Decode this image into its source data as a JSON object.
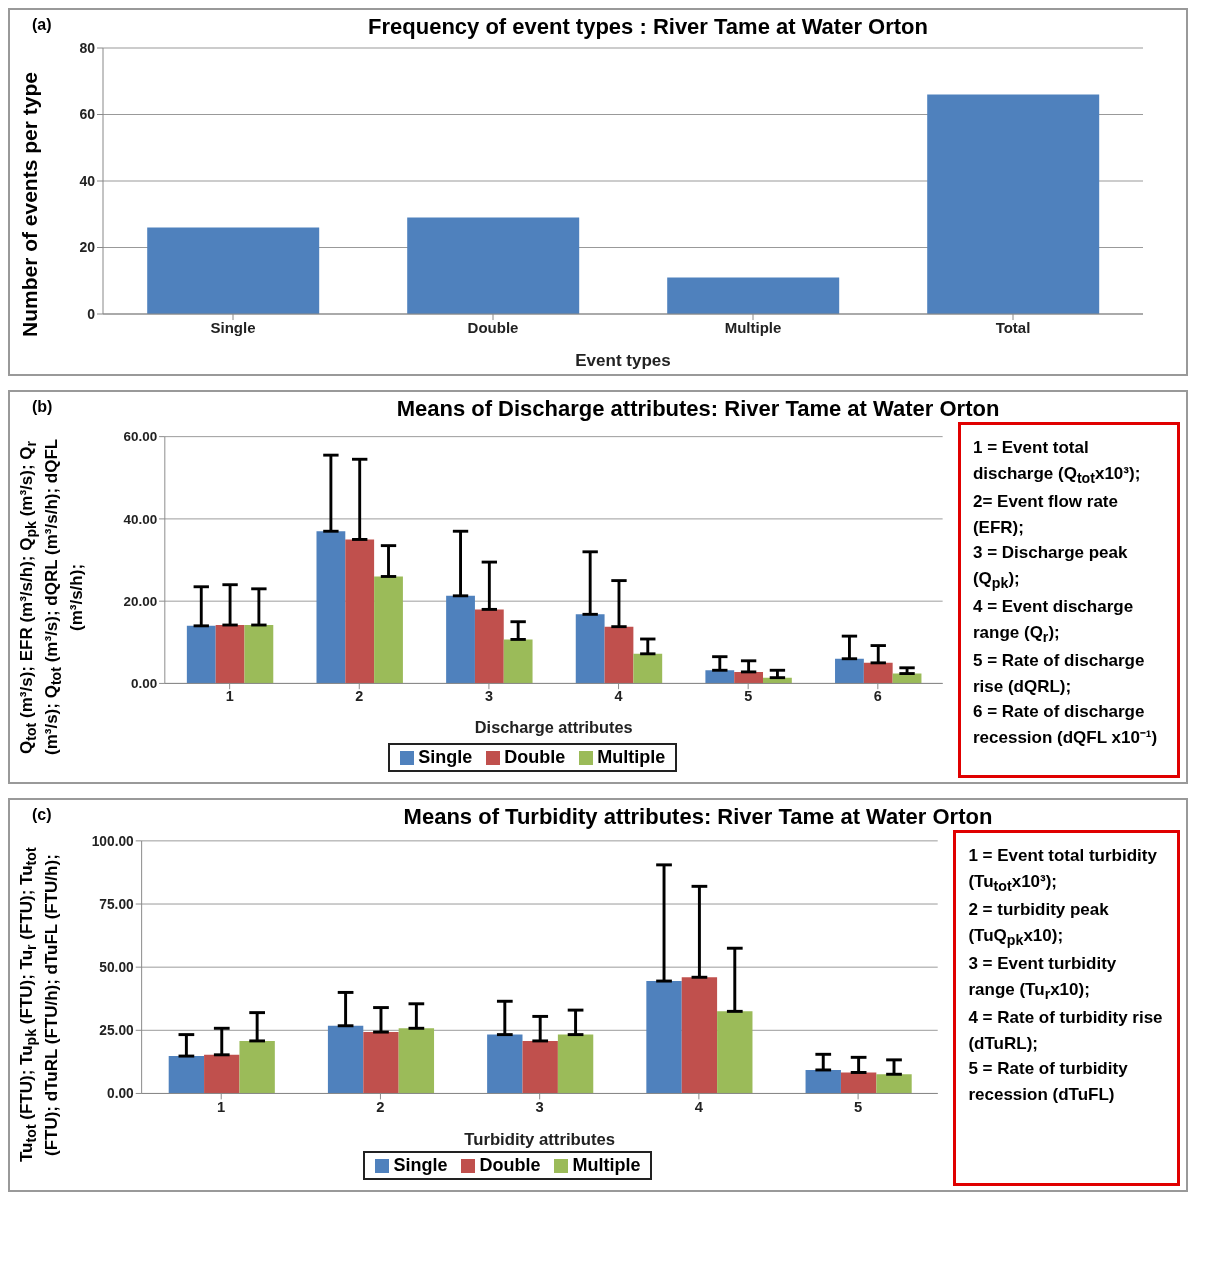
{
  "chart_data": [
    {
      "type": "bar",
      "title": "Frequency of event types : River Tame at Water Orton",
      "xlabel": "Event types",
      "ylabel": "Number of events per type",
      "categories": [
        "Single",
        "Double",
        "Multiple",
        "Total"
      ],
      "values": [
        26,
        29,
        11,
        66
      ],
      "color": "#4f81bd",
      "ylim": [
        0,
        80
      ],
      "yticks": [
        0,
        20,
        40,
        60,
        80
      ],
      "grid": "y",
      "legend": false,
      "annotations": [
        "(a)"
      ]
    },
    {
      "type": "bar",
      "title": "Means of Discharge attributes: River Tame at Water Orton",
      "xlabel": "Discharge attributes",
      "ylabel": "Q$_{tot}$ (m³/s); EFR (m³/s/h); Q$_{pk}$ (m³/s); Q$_{r}$ (m³/s); Q$_{tot}$ (m³/s); dQRL (m³/s/h); dQFL (m³/s/h);",
      "categories": [
        "1",
        "2",
        "3",
        "4",
        "5",
        "6"
      ],
      "series": [
        {
          "name": "Single",
          "color": "#4f81bd",
          "values": [
            14,
            37,
            21.3,
            16.8,
            3.2,
            6
          ],
          "errors": [
            [
              14,
              23.5
            ],
            [
              37,
              55.5
            ],
            [
              21.3,
              37
            ],
            [
              16.8,
              32
            ],
            [
              3.2,
              6.5
            ],
            [
              6,
              11.5
            ]
          ]
        },
        {
          "name": "Double",
          "color": "#c0504d",
          "values": [
            14.2,
            35,
            18,
            13.8,
            2.8,
            5
          ],
          "errors": [
            [
              14.2,
              24
            ],
            [
              35,
              54.5
            ],
            [
              18,
              29.5
            ],
            [
              13.8,
              25
            ],
            [
              2.8,
              5.5
            ],
            [
              5,
              9.2
            ]
          ]
        },
        {
          "name": "Multiple",
          "color": "#9bbb59",
          "values": [
            14.2,
            26,
            10.7,
            7.2,
            1.4,
            2.4
          ],
          "errors": [
            [
              14.2,
              23
            ],
            [
              26,
              33.5
            ],
            [
              10.7,
              15
            ],
            [
              7.2,
              10.8
            ],
            [
              1.4,
              3.2
            ],
            [
              2.4,
              3.8
            ]
          ]
        }
      ],
      "ylim": [
        0,
        60
      ],
      "yticks": [
        {
          "value": 0,
          "label": "0.00"
        },
        {
          "value": 20,
          "label": "20.00"
        },
        {
          "value": 40,
          "label": "40.00"
        },
        {
          "value": 60,
          "label": "60.00"
        }
      ],
      "grid": "y",
      "legend": "bottom",
      "annotations": [
        "(b)",
        "1 = Event total discharge (Q$_{tot}$x10³);",
        "2= Event flow rate (EFR);",
        "3 = Discharge peak (Q$_{pk}$);",
        "4 = Event discharge range (Q$_{r}$);",
        "5 = Rate of discharge rise (dQRL);",
        "6 = Rate of discharge recession (dQFL x10⁻¹)"
      ]
    },
    {
      "type": "bar",
      "title": "Means of Turbidity attributes: River Tame at Water Orton",
      "xlabel": "Turbidity attributes",
      "ylabel": "Tu$_{tot}$ (FTU); Tu$_{pk}$ (FTU); Tu$_{r}$ (FTU); Tu$_{tot}$ (FTU); dTuRL (FTU/h); dTuFL (FTU/h);",
      "categories": [
        "1",
        "2",
        "3",
        "4",
        "5"
      ],
      "series": [
        {
          "name": "Single",
          "color": "#4f81bd",
          "values": [
            14.8,
            26.8,
            23.3,
            44.5,
            9.3
          ],
          "errors": [
            [
              14.8,
              23.3
            ],
            [
              26.8,
              40
            ],
            [
              23.3,
              36.5
            ],
            [
              44.5,
              90.5
            ],
            [
              9.3,
              15.5
            ]
          ]
        },
        {
          "name": "Double",
          "color": "#c0504d",
          "values": [
            15.3,
            24.3,
            20.8,
            46,
            8.3
          ],
          "errors": [
            [
              15.3,
              25.8
            ],
            [
              24.3,
              34
            ],
            [
              20.8,
              30.5
            ],
            [
              46,
              82
            ],
            [
              8.3,
              14.3
            ]
          ]
        },
        {
          "name": "Multiple",
          "color": "#9bbb59",
          "values": [
            20.8,
            25.8,
            23.3,
            32.5,
            7.6
          ],
          "errors": [
            [
              20.8,
              32
            ],
            [
              25.8,
              35.5
            ],
            [
              23.3,
              33
            ],
            [
              32.5,
              57.5
            ],
            [
              7.6,
              13.3
            ]
          ]
        }
      ],
      "ylim": [
        0,
        100
      ],
      "yticks": [
        {
          "value": 0,
          "label": "0.00"
        },
        {
          "value": 25,
          "label": "25.00"
        },
        {
          "value": 50,
          "label": "50.00"
        },
        {
          "value": 75,
          "label": "75.00"
        },
        {
          "value": 100,
          "label": "100.00"
        }
      ],
      "grid": "y",
      "legend": "bottom",
      "annotations": [
        "(c)",
        "1 = Event total turbidity (Tu$_{tot}$x10³);",
        "2 = turbidity peak (TuQ$_{pk}$x10);",
        "3 = Event turbidity range (Tu$_{r}$x10);",
        "4 = Rate of turbidity rise (dTuRL);",
        "5 = Rate of turbidity recession (dTuFL)"
      ]
    }
  ]
}
